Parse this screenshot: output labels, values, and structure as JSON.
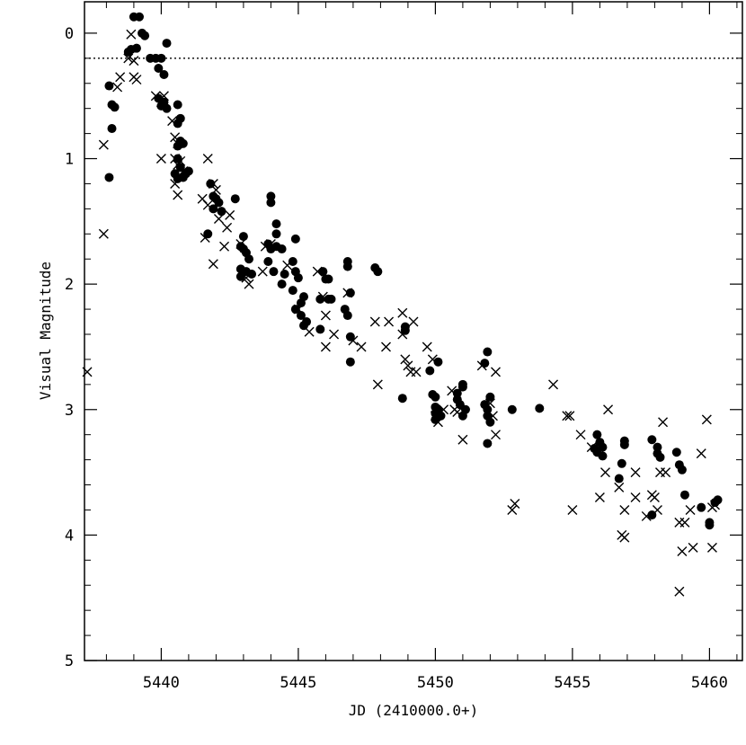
{
  "chart_data": {
    "type": "scatter",
    "title": "",
    "xlabel": "JD (2410000.0+)",
    "ylabel": "Visual Magnitude",
    "xlim": [
      5437.2,
      5461.2
    ],
    "ylim": [
      -0.25,
      5
    ],
    "y_inverted": true,
    "grid": false,
    "legend": "none",
    "x_ticks": [
      5440,
      5445,
      5450,
      5455,
      5460
    ],
    "y_ticks": [
      0,
      1,
      2,
      3,
      4,
      5
    ],
    "reference_line": {
      "y": 0.2,
      "style": "dotted"
    },
    "series": [
      {
        "marker": "filled-circle",
        "points": [
          [
            5438.1,
            0.42
          ],
          [
            5438.2,
            0.57
          ],
          [
            5438.3,
            0.59
          ],
          [
            5438.2,
            0.76
          ],
          [
            5438.1,
            1.15
          ],
          [
            5438.8,
            0.15
          ],
          [
            5438.9,
            0.13
          ],
          [
            5439.1,
            0.12
          ],
          [
            5439.0,
            -0.13
          ],
          [
            5439.2,
            -0.13
          ],
          [
            5439.3,
            0.0
          ],
          [
            5439.4,
            0.02
          ],
          [
            5439.6,
            0.2
          ],
          [
            5439.8,
            0.2
          ],
          [
            5439.9,
            0.28
          ],
          [
            5440.0,
            0.2
          ],
          [
            5440.1,
            0.33
          ],
          [
            5440.2,
            0.08
          ],
          [
            5439.9,
            0.52
          ],
          [
            5440.1,
            0.55
          ],
          [
            5440.2,
            0.6
          ],
          [
            5440.0,
            0.58
          ],
          [
            5440.6,
            0.57
          ],
          [
            5440.7,
            0.68
          ],
          [
            5440.6,
            0.72
          ],
          [
            5440.7,
            0.86
          ],
          [
            5440.6,
            0.9
          ],
          [
            5440.8,
            0.88
          ],
          [
            5440.6,
            1.0
          ],
          [
            5440.7,
            1.07
          ],
          [
            5440.5,
            1.12
          ],
          [
            5440.9,
            1.12
          ],
          [
            5440.8,
            1.15
          ],
          [
            5440.6,
            1.16
          ],
          [
            5441.0,
            1.1
          ],
          [
            5441.8,
            1.2
          ],
          [
            5441.9,
            1.3
          ],
          [
            5442.0,
            1.32
          ],
          [
            5442.1,
            1.35
          ],
          [
            5441.9,
            1.4
          ],
          [
            5442.2,
            1.42
          ],
          [
            5441.7,
            1.6
          ],
          [
            5442.7,
            1.32
          ],
          [
            5442.9,
            1.7
          ],
          [
            5443.0,
            1.62
          ],
          [
            5443.0,
            1.72
          ],
          [
            5443.1,
            1.75
          ],
          [
            5443.2,
            1.8
          ],
          [
            5442.9,
            1.88
          ],
          [
            5442.9,
            1.94
          ],
          [
            5443.1,
            1.9
          ],
          [
            5443.3,
            1.92
          ],
          [
            5444.0,
            1.3
          ],
          [
            5444.0,
            1.35
          ],
          [
            5444.2,
            1.52
          ],
          [
            5444.2,
            1.6
          ],
          [
            5443.9,
            1.68
          ],
          [
            5444.0,
            1.72
          ],
          [
            5444.2,
            1.7
          ],
          [
            5444.4,
            1.72
          ],
          [
            5443.9,
            1.82
          ],
          [
            5444.1,
            1.9
          ],
          [
            5444.5,
            1.92
          ],
          [
            5444.4,
            2.0
          ],
          [
            5444.9,
            1.64
          ],
          [
            5444.8,
            1.82
          ],
          [
            5444.9,
            1.9
          ],
          [
            5445.0,
            1.95
          ],
          [
            5444.8,
            2.05
          ],
          [
            5445.2,
            2.1
          ],
          [
            5445.1,
            2.15
          ],
          [
            5444.9,
            2.2
          ],
          [
            5445.1,
            2.25
          ],
          [
            5445.3,
            2.3
          ],
          [
            5445.2,
            2.33
          ],
          [
            5445.9,
            1.9
          ],
          [
            5446.0,
            1.96
          ],
          [
            5446.1,
            1.96
          ],
          [
            5445.8,
            2.12
          ],
          [
            5446.1,
            2.12
          ],
          [
            5446.2,
            2.12
          ],
          [
            5445.8,
            2.36
          ],
          [
            5446.8,
            1.82
          ],
          [
            5446.8,
            1.86
          ],
          [
            5446.9,
            2.07
          ],
          [
            5446.7,
            2.2
          ],
          [
            5446.8,
            2.25
          ],
          [
            5446.9,
            2.42
          ],
          [
            5446.9,
            2.62
          ],
          [
            5447.8,
            1.87
          ],
          [
            5447.9,
            1.9
          ],
          [
            5448.9,
            2.34
          ],
          [
            5448.9,
            2.37
          ],
          [
            5448.8,
            2.91
          ],
          [
            5450.1,
            2.62
          ],
          [
            5449.8,
            2.69
          ],
          [
            5449.9,
            2.88
          ],
          [
            5450.0,
            2.9
          ],
          [
            5450.0,
            2.98
          ],
          [
            5450.1,
            3.0
          ],
          [
            5450.0,
            3.03
          ],
          [
            5450.2,
            3.05
          ],
          [
            5450.0,
            3.08
          ],
          [
            5450.8,
            2.87
          ],
          [
            5450.8,
            2.92
          ],
          [
            5450.9,
            2.96
          ],
          [
            5451.0,
            2.82
          ],
          [
            5451.0,
            2.8
          ],
          [
            5451.1,
            3.0
          ],
          [
            5451.0,
            3.05
          ],
          [
            5451.8,
            2.63
          ],
          [
            5451.9,
            2.54
          ],
          [
            5451.8,
            2.96
          ],
          [
            5451.9,
            3.0
          ],
          [
            5452.0,
            2.9
          ],
          [
            5451.9,
            3.05
          ],
          [
            5452.0,
            3.1
          ],
          [
            5451.9,
            3.27
          ],
          [
            5452.8,
            3.0
          ],
          [
            5453.8,
            2.99
          ],
          [
            5455.8,
            3.31
          ],
          [
            5455.9,
            3.2
          ],
          [
            5456.0,
            3.26
          ],
          [
            5456.1,
            3.3
          ],
          [
            5455.9,
            3.34
          ],
          [
            5456.1,
            3.37
          ],
          [
            5456.7,
            3.55
          ],
          [
            5456.9,
            3.25
          ],
          [
            5456.9,
            3.28
          ],
          [
            5456.8,
            3.43
          ],
          [
            5457.9,
            3.24
          ],
          [
            5458.1,
            3.3
          ],
          [
            5458.1,
            3.35
          ],
          [
            5458.2,
            3.38
          ],
          [
            5457.9,
            3.84
          ],
          [
            5458.8,
            3.34
          ],
          [
            5458.9,
            3.44
          ],
          [
            5459.0,
            3.48
          ],
          [
            5459.1,
            3.68
          ],
          [
            5459.7,
            3.78
          ],
          [
            5460.0,
            3.9
          ],
          [
            5460.0,
            3.92
          ],
          [
            5460.2,
            3.74
          ],
          [
            5460.3,
            3.72
          ]
        ]
      },
      {
        "marker": "cross",
        "points": [
          [
            5437.3,
            2.7
          ],
          [
            5437.9,
            0.89
          ],
          [
            5437.9,
            1.6
          ],
          [
            5438.4,
            0.43
          ],
          [
            5438.5,
            0.35
          ],
          [
            5438.8,
            0.2
          ],
          [
            5438.9,
            0.01
          ],
          [
            5439.0,
            0.22
          ],
          [
            5439.0,
            0.35
          ],
          [
            5439.1,
            0.37
          ],
          [
            5439.8,
            0.5
          ],
          [
            5440.0,
            0.55
          ],
          [
            5440.1,
            0.5
          ],
          [
            5440.0,
            1.0
          ],
          [
            5440.4,
            0.7
          ],
          [
            5440.5,
            0.83
          ],
          [
            5440.6,
            0.88
          ],
          [
            5440.5,
            1.0
          ],
          [
            5440.6,
            1.05
          ],
          [
            5440.7,
            1.02
          ],
          [
            5440.8,
            1.1
          ],
          [
            5440.5,
            1.2
          ],
          [
            5440.6,
            1.29
          ],
          [
            5441.5,
            1.32
          ],
          [
            5441.7,
            1.37
          ],
          [
            5441.7,
            1.0
          ],
          [
            5441.9,
            1.2
          ],
          [
            5442.0,
            1.25
          ],
          [
            5441.6,
            1.63
          ],
          [
            5442.1,
            1.48
          ],
          [
            5442.3,
            1.7
          ],
          [
            5441.9,
            1.84
          ],
          [
            5442.5,
            1.45
          ],
          [
            5442.4,
            1.55
          ],
          [
            5442.9,
            1.68
          ],
          [
            5443.1,
            1.95
          ],
          [
            5443.2,
            2.0
          ],
          [
            5443.8,
            1.7
          ],
          [
            5443.7,
            1.9
          ],
          [
            5444.0,
            1.68
          ],
          [
            5444.6,
            1.85
          ],
          [
            5445.0,
            2.2
          ],
          [
            5445.4,
            2.38
          ],
          [
            5445.7,
            1.9
          ],
          [
            5445.9,
            2.1
          ],
          [
            5446.0,
            2.25
          ],
          [
            5446.0,
            2.5
          ],
          [
            5446.3,
            2.4
          ],
          [
            5446.8,
            2.07
          ],
          [
            5447.0,
            2.45
          ],
          [
            5447.3,
            2.5
          ],
          [
            5447.8,
            2.3
          ],
          [
            5447.9,
            2.8
          ],
          [
            5448.3,
            2.3
          ],
          [
            5448.2,
            2.5
          ],
          [
            5448.8,
            2.23
          ],
          [
            5448.8,
            2.4
          ],
          [
            5448.9,
            2.6
          ],
          [
            5449.0,
            2.65
          ],
          [
            5449.1,
            2.7
          ],
          [
            5449.2,
            2.3
          ],
          [
            5449.3,
            2.7
          ],
          [
            5449.7,
            2.5
          ],
          [
            5449.9,
            2.6
          ],
          [
            5450.0,
            3.05
          ],
          [
            5450.1,
            3.1
          ],
          [
            5450.3,
            3.0
          ],
          [
            5450.6,
            2.85
          ],
          [
            5450.8,
            3.02
          ],
          [
            5450.7,
            3.0
          ],
          [
            5451.0,
            3.24
          ],
          [
            5451.7,
            2.65
          ],
          [
            5452.0,
            2.95
          ],
          [
            5452.1,
            3.05
          ],
          [
            5452.2,
            3.2
          ],
          [
            5452.2,
            2.7
          ],
          [
            5452.8,
            3.8
          ],
          [
            5452.9,
            3.75
          ],
          [
            5454.3,
            2.8
          ],
          [
            5454.8,
            3.05
          ],
          [
            5454.9,
            3.05
          ],
          [
            5455.0,
            3.8
          ],
          [
            5455.3,
            3.2
          ],
          [
            5455.7,
            3.3
          ],
          [
            5456.0,
            3.7
          ],
          [
            5456.2,
            3.5
          ],
          [
            5456.3,
            3.0
          ],
          [
            5456.7,
            3.62
          ],
          [
            5456.8,
            4.0
          ],
          [
            5456.9,
            4.02
          ],
          [
            5456.9,
            3.8
          ],
          [
            5457.3,
            3.5
          ],
          [
            5457.3,
            3.7
          ],
          [
            5457.7,
            3.85
          ],
          [
            5457.9,
            3.68
          ],
          [
            5458.0,
            3.7
          ],
          [
            5458.1,
            3.8
          ],
          [
            5458.2,
            3.5
          ],
          [
            5458.3,
            3.1
          ],
          [
            5458.4,
            3.5
          ],
          [
            5458.9,
            3.9
          ],
          [
            5459.0,
            4.13
          ],
          [
            5459.1,
            3.9
          ],
          [
            5459.3,
            3.8
          ],
          [
            5459.4,
            4.1
          ],
          [
            5458.9,
            4.45
          ],
          [
            5459.7,
            3.35
          ],
          [
            5459.9,
            3.08
          ],
          [
            5460.1,
            3.78
          ],
          [
            5460.2,
            3.76
          ],
          [
            5460.1,
            4.1
          ]
        ]
      }
    ]
  }
}
